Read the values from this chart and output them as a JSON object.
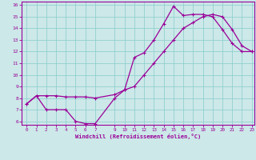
{
  "xlabel": "Windchill (Refroidissement éolien,°C)",
  "bg_color": "#cce8e8",
  "line_color": "#990099",
  "xlim": [
    -0.5,
    23.3
  ],
  "ylim": [
    5.7,
    16.3
  ],
  "xticks": [
    0,
    1,
    2,
    3,
    4,
    5,
    6,
    7,
    9,
    10,
    11,
    12,
    13,
    14,
    15,
    16,
    17,
    18,
    19,
    20,
    21,
    22,
    23
  ],
  "yticks": [
    6,
    7,
    8,
    9,
    10,
    11,
    12,
    13,
    14,
    15,
    16
  ],
  "line1_x": [
    0,
    1,
    2,
    3,
    4,
    5,
    6,
    7,
    9,
    10,
    11,
    12,
    13,
    14,
    15,
    16,
    17,
    18,
    19,
    20,
    21,
    22,
    23
  ],
  "line1_y": [
    7.5,
    8.2,
    7.0,
    7.0,
    7.0,
    6.0,
    5.8,
    5.8,
    8.0,
    8.7,
    11.5,
    11.9,
    13.0,
    14.4,
    15.9,
    15.1,
    15.2,
    15.2,
    15.0,
    13.9,
    12.7,
    12.0,
    12.0
  ],
  "line2_x": [
    0,
    1,
    2,
    3,
    4,
    5,
    6,
    7,
    9,
    10,
    11,
    12,
    13,
    14,
    15,
    16,
    17,
    18,
    19,
    20,
    21,
    22,
    23
  ],
  "line2_y": [
    7.5,
    8.2,
    8.2,
    8.2,
    8.1,
    8.1,
    8.1,
    8.0,
    8.3,
    8.7,
    9.0,
    10.0,
    11.0,
    12.0,
    13.0,
    14.0,
    14.5,
    15.0,
    15.2,
    15.0,
    13.9,
    12.5,
    12.0
  ],
  "grid_color": "#88cccc",
  "marker": "+"
}
